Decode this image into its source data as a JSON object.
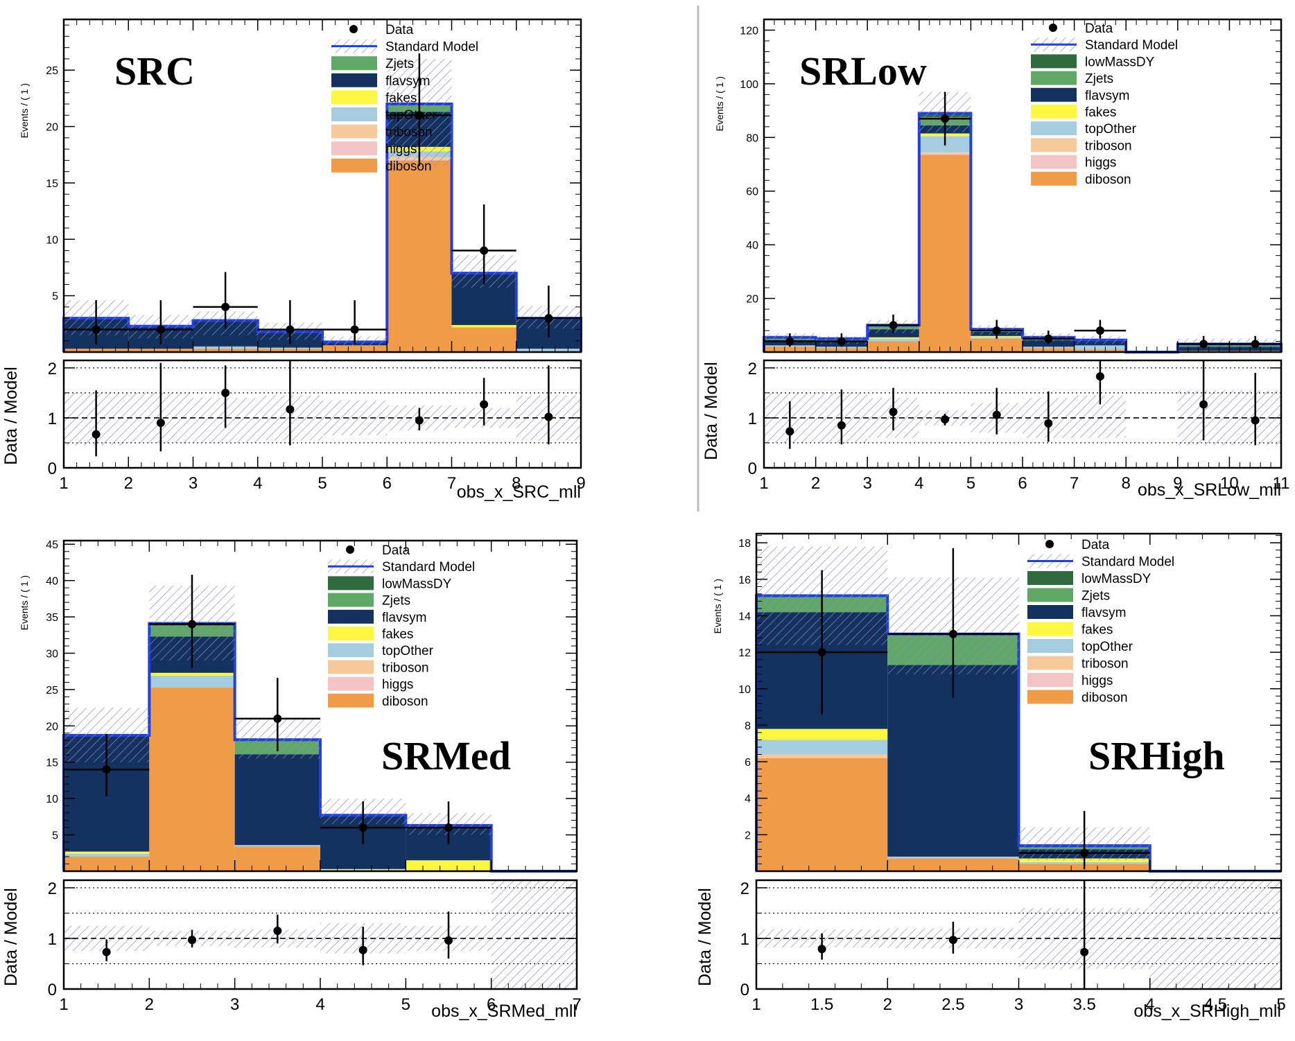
{
  "y_label_top": "Events / ( 1 )",
  "y_label_ratio": "Data / Model",
  "legend_labels": {
    "data": "Data",
    "sm": "Standard Model",
    "lowMassDY": "lowMassDY",
    "Zjets": "Zjets",
    "flavsym": "flavsym",
    "fakes": "fakes",
    "topOther": "topOther",
    "triboson": "triboson",
    "higgs": "higgs",
    "diboson": "diboson"
  },
  "colors": {
    "lowMassDY": "#2f6b3c",
    "Zjets": "#5fa866",
    "flavsym": "#13325f",
    "fakes": "#fdf741",
    "topOther": "#a6cce0",
    "triboson": "#f6c99a",
    "higgs": "#f2c4c4",
    "diboson": "#ef9b48",
    "sm_line": "#1f3fe0",
    "hatch": "#8c8cc4",
    "data": "#000000"
  },
  "chart_data": [
    {
      "type": "bar",
      "region_label": "SRC",
      "xlabel": "obs_x_SRC_mll",
      "xlim": [
        1,
        9
      ],
      "ylim": [
        0,
        29.5
      ],
      "y_ticks": [
        5,
        10,
        15,
        20,
        25
      ],
      "x_ticks": [
        "1",
        "2",
        "3",
        "4",
        "5",
        "6",
        "7",
        "8",
        "9"
      ],
      "ratio_ylim": [
        0,
        2.15
      ],
      "ratio_ticks": [
        "0",
        "1",
        "2"
      ],
      "legend": [
        "data",
        "sm",
        "Zjets",
        "flavsym",
        "fakes",
        "topOther",
        "triboson",
        "higgs",
        "diboson"
      ],
      "stack_order": [
        "diboson",
        "higgs",
        "triboson",
        "topOther",
        "fakes",
        "flavsym",
        "Zjets"
      ],
      "stacks": {
        "diboson": [
          0.3,
          0.3,
          0.3,
          0.3,
          0.6,
          17.0,
          2.2,
          0.0
        ],
        "higgs": [
          0.0,
          0.0,
          0.0,
          0.0,
          0.0,
          0.1,
          0.0,
          0.0
        ],
        "triboson": [
          0.0,
          0.0,
          0.0,
          0.0,
          0.0,
          0.2,
          0.0,
          0.0
        ],
        "topOther": [
          0.0,
          0.0,
          0.2,
          0.1,
          0.0,
          0.5,
          0.0,
          0.3
        ],
        "fakes": [
          0.0,
          0.0,
          0.0,
          0.0,
          0.0,
          0.4,
          0.2,
          0.0
        ],
        "flavsym": [
          2.7,
          2.0,
          2.3,
          1.4,
          0.3,
          3.1,
          4.6,
          2.7
        ],
        "Zjets": [
          0.0,
          0.0,
          0.0,
          0.0,
          0.0,
          0.7,
          0.0,
          0.0
        ]
      },
      "band_lo": [
        1.5,
        1.2,
        1.5,
        1.1,
        0.5,
        16.5,
        5.7,
        2.1
      ],
      "band_hi": [
        4.6,
        3.3,
        3.6,
        2.6,
        1.4,
        26.0,
        8.6,
        4.1
      ],
      "data": [
        {
          "x": 1.5,
          "xerr": 0.5,
          "y": 2,
          "lo": 0.7,
          "hi": 4.6
        },
        {
          "x": 2.5,
          "xerr": 0.5,
          "y": 2,
          "lo": 0.7,
          "hi": 4.6
        },
        {
          "x": 3.5,
          "xerr": 0.5,
          "y": 4,
          "lo": 2.1,
          "hi": 7.1
        },
        {
          "x": 4.5,
          "xerr": 0.5,
          "y": 2,
          "lo": 0.7,
          "hi": 4.6
        },
        {
          "x": 5.5,
          "xerr": 0.5,
          "y": 2,
          "lo": 0.7,
          "hi": 4.6
        },
        {
          "x": 6.5,
          "xerr": 0.5,
          "y": 21,
          "lo": 16.5,
          "hi": 26.5
        },
        {
          "x": 7.5,
          "xerr": 0.5,
          "y": 9,
          "lo": 6.0,
          "hi": 13.1
        },
        {
          "x": 8.5,
          "xerr": 0.5,
          "y": 3,
          "lo": 1.3,
          "hi": 5.9
        }
      ],
      "ratio_band_lo": [
        0.45,
        0.5,
        0.5,
        0.55,
        0.65,
        0.75,
        0.8,
        0.55
      ],
      "ratio_band_hi": [
        1.5,
        1.5,
        1.4,
        1.45,
        1.35,
        1.25,
        1.2,
        1.45
      ],
      "ratio": [
        {
          "x": 1.5,
          "y": 0.67,
          "lo": 0.23,
          "hi": 1.55
        },
        {
          "x": 2.5,
          "y": 0.9,
          "lo": 0.33,
          "hi": 2.1
        },
        {
          "x": 3.5,
          "y": 1.5,
          "lo": 0.8,
          "hi": 2.05
        },
        {
          "x": 4.5,
          "y": 1.17,
          "lo": 0.45,
          "hi": 2.15
        },
        {
          "x": 6.5,
          "y": 0.95,
          "lo": 0.75,
          "hi": 1.2
        },
        {
          "x": 7.5,
          "y": 1.27,
          "lo": 0.85,
          "hi": 1.8
        },
        {
          "x": 8.5,
          "y": 1.02,
          "lo": 0.47,
          "hi": 2.05
        }
      ]
    },
    {
      "type": "bar",
      "region_label": "SRLow",
      "xlabel": "obs_x_SRLow_mll",
      "xlim": [
        1,
        11
      ],
      "ylim": [
        0,
        124
      ],
      "y_ticks": [
        20,
        40,
        60,
        80,
        100,
        120
      ],
      "x_ticks": [
        "1",
        "2",
        "3",
        "4",
        "5",
        "6",
        "7",
        "8",
        "9",
        "10",
        "11"
      ],
      "ratio_ylim": [
        0,
        2.15
      ],
      "ratio_ticks": [
        "0",
        "1",
        "2"
      ],
      "legend": [
        "data",
        "sm",
        "lowMassDY",
        "Zjets",
        "flavsym",
        "fakes",
        "topOther",
        "triboson",
        "higgs",
        "diboson"
      ],
      "stack_order": [
        "diboson",
        "higgs",
        "triboson",
        "topOther",
        "fakes",
        "flavsym",
        "Zjets",
        "lowMassDY"
      ],
      "stacks": {
        "diboson": [
          2.0,
          1.5,
          4.0,
          73.5,
          5.0,
          1.5,
          1.0,
          0.0,
          0.5,
          0.5
        ],
        "higgs": [
          0.0,
          0.0,
          0.0,
          0.5,
          0.0,
          0.0,
          0.0,
          0.0,
          0.0,
          0.0
        ],
        "triboson": [
          0.0,
          0.0,
          0.0,
          0.5,
          0.0,
          0.0,
          0.0,
          0.0,
          0.0,
          0.0
        ],
        "topOther": [
          0.5,
          0.5,
          1.0,
          6.0,
          0.5,
          0.5,
          1.5,
          0.0,
          0.0,
          0.0
        ],
        "fakes": [
          0.0,
          0.0,
          0.5,
          1.0,
          0.5,
          0.0,
          0.0,
          0.0,
          0.0,
          0.0
        ],
        "flavsym": [
          2.0,
          2.0,
          3.0,
          3.0,
          1.5,
          2.5,
          1.5,
          0.0,
          1.5,
          1.5
        ],
        "Zjets": [
          0.5,
          0.5,
          1.0,
          3.0,
          0.5,
          0.5,
          0.5,
          0.0,
          0.5,
          0.5
        ],
        "lowMassDY": [
          0.5,
          0.5,
          0.5,
          1.5,
          0.5,
          0.5,
          0.0,
          0.0,
          0.5,
          0.5
        ]
      },
      "band_lo": [
        3.5,
        3.0,
        7.0,
        82.0,
        6.5,
        4.0,
        3.0,
        0.0,
        2.0,
        2.0
      ],
      "band_hi": [
        7.0,
        6.0,
        12.0,
        97.0,
        10.0,
        7.0,
        6.0,
        0.0,
        5.0,
        5.0
      ],
      "data": [
        {
          "x": 1.5,
          "xerr": 0.5,
          "y": 4,
          "lo": 2.0,
          "hi": 7.0
        },
        {
          "x": 2.5,
          "xerr": 0.5,
          "y": 4,
          "lo": 2.0,
          "hi": 7.0
        },
        {
          "x": 3.5,
          "xerr": 0.5,
          "y": 10,
          "lo": 7.0,
          "hi": 14.0
        },
        {
          "x": 4.5,
          "xerr": 0.5,
          "y": 87,
          "lo": 77.0,
          "hi": 97.0
        },
        {
          "x": 5.5,
          "xerr": 0.5,
          "y": 8,
          "lo": 5.0,
          "hi": 12.0
        },
        {
          "x": 6.5,
          "xerr": 0.5,
          "y": 5,
          "lo": 3.0,
          "hi": 8.0
        },
        {
          "x": 7.5,
          "xerr": 0.5,
          "y": 8,
          "lo": 5.0,
          "hi": 12.0
        },
        {
          "x": 9.5,
          "xerr": 0.5,
          "y": 3,
          "lo": 1.5,
          "hi": 6.0
        },
        {
          "x": 10.5,
          "xerr": 0.5,
          "y": 3,
          "lo": 1.5,
          "hi": 6.0
        }
      ],
      "ratio_band_lo": [
        0.5,
        0.5,
        0.6,
        0.85,
        0.7,
        0.6,
        0.6,
        0.0,
        0.45,
        0.45
      ],
      "ratio_band_hi": [
        1.5,
        1.5,
        1.4,
        1.15,
        1.3,
        1.4,
        1.45,
        0.0,
        1.55,
        1.55
      ],
      "ratio": [
        {
          "x": 1.5,
          "y": 0.73,
          "lo": 0.38,
          "hi": 1.33
        },
        {
          "x": 2.5,
          "y": 0.85,
          "lo": 0.47,
          "hi": 1.57
        },
        {
          "x": 3.5,
          "y": 1.12,
          "lo": 0.75,
          "hi": 1.6
        },
        {
          "x": 4.5,
          "y": 0.97,
          "lo": 0.85,
          "hi": 1.08
        },
        {
          "x": 5.5,
          "y": 1.06,
          "lo": 0.67,
          "hi": 1.6
        },
        {
          "x": 6.5,
          "y": 0.89,
          "lo": 0.52,
          "hi": 1.53
        },
        {
          "x": 7.5,
          "y": 1.83,
          "lo": 1.27,
          "hi": 2.15
        },
        {
          "x": 9.5,
          "y": 1.27,
          "lo": 0.55,
          "hi": 2.15
        },
        {
          "x": 10.5,
          "y": 0.95,
          "lo": 0.45,
          "hi": 1.9
        }
      ]
    },
    {
      "type": "bar",
      "region_label": "SRMed",
      "xlabel": "obs_x_SRMed_mll",
      "xlim": [
        1,
        7
      ],
      "ylim": [
        0,
        45.5
      ],
      "y_ticks": [
        5,
        10,
        15,
        20,
        25,
        30,
        35,
        40,
        45
      ],
      "x_ticks": [
        "1",
        "2",
        "3",
        "4",
        "5",
        "6",
        "7"
      ],
      "ratio_ylim": [
        0,
        2.15
      ],
      "ratio_ticks": [
        "0",
        "1",
        "2"
      ],
      "legend": [
        "data",
        "sm",
        "lowMassDY",
        "Zjets",
        "flavsym",
        "fakes",
        "topOther",
        "triboson",
        "higgs",
        "diboson"
      ],
      "stack_order": [
        "diboson",
        "higgs",
        "triboson",
        "topOther",
        "fakes",
        "flavsym",
        "Zjets",
        "lowMassDY"
      ],
      "stacks": {
        "diboson": [
          2.0,
          25.3,
          3.4,
          0.0,
          0.0,
          0.0
        ],
        "higgs": [
          0.0,
          0.0,
          0.0,
          0.0,
          0.0,
          0.0
        ],
        "triboson": [
          0.0,
          0.0,
          0.0,
          0.0,
          0.0,
          0.0
        ],
        "topOther": [
          0.4,
          1.6,
          0.2,
          0.2,
          0.0,
          0.0
        ],
        "fakes": [
          0.3,
          0.4,
          0.0,
          0.1,
          1.5,
          0.0
        ],
        "flavsym": [
          16.0,
          5.0,
          12.5,
          7.3,
          4.8,
          0.0
        ],
        "Zjets": [
          0.0,
          1.5,
          1.8,
          0.1,
          0.0,
          0.0
        ],
        "lowMassDY": [
          0.0,
          0.3,
          0.2,
          0.0,
          0.0,
          0.0
        ]
      },
      "band_lo": [
        15.0,
        29.0,
        15.5,
        6.5,
        5.0,
        0.0
      ],
      "band_hi": [
        22.5,
        39.3,
        21.0,
        10.0,
        8.0,
        0.0
      ],
      "data": [
        {
          "x": 1.5,
          "xerr": 0.5,
          "y": 14,
          "lo": 10.3,
          "hi": 18.9
        },
        {
          "x": 2.5,
          "xerr": 0.5,
          "y": 34,
          "lo": 28.0,
          "hi": 40.8
        },
        {
          "x": 3.5,
          "xerr": 0.5,
          "y": 21,
          "lo": 16.5,
          "hi": 26.6
        },
        {
          "x": 4.5,
          "xerr": 0.5,
          "y": 6,
          "lo": 3.7,
          "hi": 9.6
        },
        {
          "x": 5.5,
          "xerr": 0.5,
          "y": 6,
          "lo": 3.7,
          "hi": 9.6
        }
      ],
      "ratio_band_lo": [
        0.75,
        0.85,
        0.82,
        0.7,
        0.75,
        0.0
      ],
      "ratio_band_hi": [
        1.25,
        1.15,
        1.18,
        1.3,
        1.25,
        2.15
      ],
      "ratio": [
        {
          "x": 1.5,
          "y": 0.73,
          "lo": 0.55,
          "hi": 0.98
        },
        {
          "x": 2.5,
          "y": 0.97,
          "lo": 0.82,
          "hi": 1.17
        },
        {
          "x": 3.5,
          "y": 1.15,
          "lo": 0.9,
          "hi": 1.47
        },
        {
          "x": 4.5,
          "y": 0.77,
          "lo": 0.47,
          "hi": 1.23
        },
        {
          "x": 5.5,
          "y": 0.96,
          "lo": 0.6,
          "hi": 1.53
        }
      ]
    },
    {
      "type": "bar",
      "region_label": "SRHigh",
      "xlabel": "obs_x_SRHigh_mll",
      "xlim": [
        1,
        5
      ],
      "ylim": [
        0,
        18.5
      ],
      "y_ticks": [
        2,
        4,
        6,
        8,
        10,
        12,
        14,
        16,
        18
      ],
      "x_ticks": [
        "1",
        "1.5",
        "2",
        "2.5",
        "3",
        "3.5",
        "4",
        "4.5",
        "5"
      ],
      "ratio_ylim": [
        0,
        2.15
      ],
      "ratio_ticks": [
        "0",
        "1",
        "2"
      ],
      "legend": [
        "data",
        "sm",
        "lowMassDY",
        "Zjets",
        "flavsym",
        "fakes",
        "topOther",
        "triboson",
        "higgs",
        "diboson"
      ],
      "stack_order": [
        "diboson",
        "higgs",
        "triboson",
        "topOther",
        "fakes",
        "flavsym",
        "Zjets",
        "lowMassDY"
      ],
      "stacks": {
        "diboson": [
          6.2,
          0.7,
          0.4,
          0.0
        ],
        "higgs": [
          0.0,
          0.0,
          0.0,
          0.0
        ],
        "triboson": [
          0.2,
          0.0,
          0.0,
          0.0
        ],
        "topOther": [
          0.8,
          0.1,
          0.1,
          0.0
        ],
        "fakes": [
          0.6,
          0.0,
          0.2,
          0.0
        ],
        "flavsym": [
          6.4,
          10.5,
          0.5,
          0.0
        ],
        "Zjets": [
          0.9,
          1.7,
          0.1,
          0.0
        ],
        "lowMassDY": [
          0.0,
          0.0,
          0.1,
          0.0
        ]
      },
      "band_lo": [
        12.4,
        10.8,
        0.6,
        0.0
      ],
      "band_hi": [
        17.8,
        16.1,
        2.4,
        0.0
      ],
      "data": [
        {
          "x": 1.5,
          "xerr": 0.5,
          "y": 12,
          "lo": 8.6,
          "hi": 16.5
        },
        {
          "x": 2.5,
          "xerr": 0.5,
          "y": 13,
          "lo": 9.5,
          "hi": 17.7
        },
        {
          "x": 3.5,
          "xerr": 0.5,
          "y": 1,
          "lo": 0.1,
          "hi": 3.3
        }
      ],
      "ratio_band_lo": [
        0.82,
        0.8,
        0.4,
        0.0
      ],
      "ratio_band_hi": [
        1.18,
        1.2,
        1.6,
        2.15
      ],
      "ratio": [
        {
          "x": 1.5,
          "y": 0.79,
          "lo": 0.58,
          "hi": 1.1
        },
        {
          "x": 2.5,
          "y": 0.97,
          "lo": 0.7,
          "hi": 1.33
        },
        {
          "x": 3.5,
          "y": 0.73,
          "lo": 0.0,
          "hi": 2.15
        }
      ]
    }
  ]
}
